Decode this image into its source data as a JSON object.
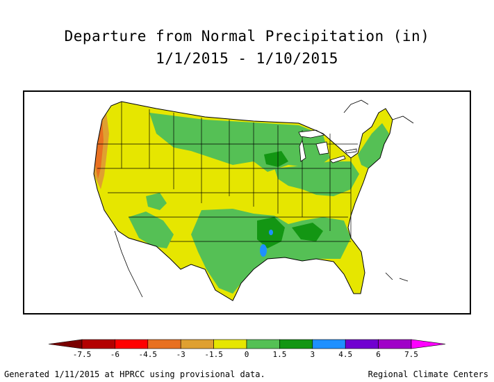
{
  "title": {
    "line1": "Departure from Normal Precipitation (in)",
    "line2": "1/1/2015 - 1/10/2015"
  },
  "legend": {
    "ticks": [
      "-7.5",
      "-6",
      "-4.5",
      "-3",
      "-1.5",
      "0",
      "1.5",
      "3",
      "4.5",
      "6",
      "7.5"
    ],
    "colors": [
      "#7a0000",
      "#b30000",
      "#ff0000",
      "#e87020",
      "#dfa030",
      "#e6e600",
      "#55c055",
      "#139613",
      "#1e90ff",
      "#7000d0",
      "#a000c8",
      "#ff00ff"
    ]
  },
  "map_colors": {
    "yellow": "#e6e600",
    "light_green": "#55c055",
    "dark_green": "#139613",
    "blue": "#1e90ff",
    "orange": "#e87020",
    "tan": "#dfa030",
    "water": "#ffffff",
    "border": "#000000"
  },
  "footer": {
    "left": "Generated 1/11/2015 at HPRCC using provisional data.",
    "right": "Regional Climate Centers"
  }
}
